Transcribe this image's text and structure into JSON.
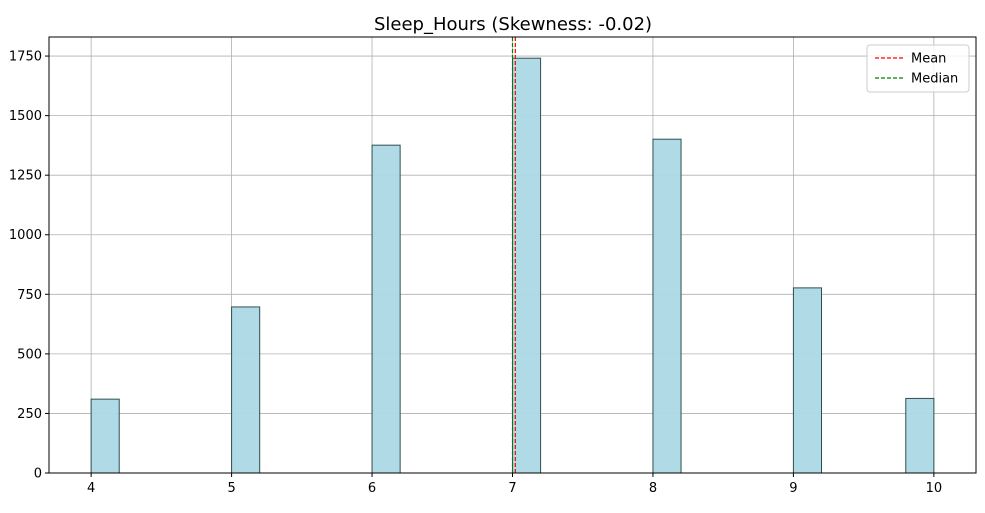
{
  "chart_data": {
    "type": "bar",
    "title": "Sleep_Hours (Skewness: -0.02)",
    "xlabel": "",
    "ylabel": "",
    "xlim": [
      3.7,
      10.3
    ],
    "ylim": [
      0,
      1830
    ],
    "x_ticks": [
      4,
      5,
      6,
      7,
      8,
      9,
      10
    ],
    "y_ticks": [
      0,
      250,
      500,
      750,
      1000,
      1250,
      1500,
      1750
    ],
    "grid": true,
    "bin_width": 0.2,
    "bars": [
      {
        "x_start": 4.0,
        "count": 310
      },
      {
        "x_start": 5.0,
        "count": 697
      },
      {
        "x_start": 6.0,
        "count": 1376
      },
      {
        "x_start": 7.0,
        "count": 1741
      },
      {
        "x_start": 8.0,
        "count": 1401
      },
      {
        "x_start": 9.0,
        "count": 777
      },
      {
        "x_start": 9.8,
        "count": 313
      }
    ],
    "reference_lines": [
      {
        "name": "Mean",
        "value": 7.02,
        "color": "#ff0000",
        "style": "dashed"
      },
      {
        "name": "Median",
        "value": 7.0,
        "color": "#008000",
        "style": "dashed"
      }
    ],
    "bar_fill": "#add8e6",
    "bar_edge": "#2f4f4f",
    "legend_position": "top-right"
  }
}
